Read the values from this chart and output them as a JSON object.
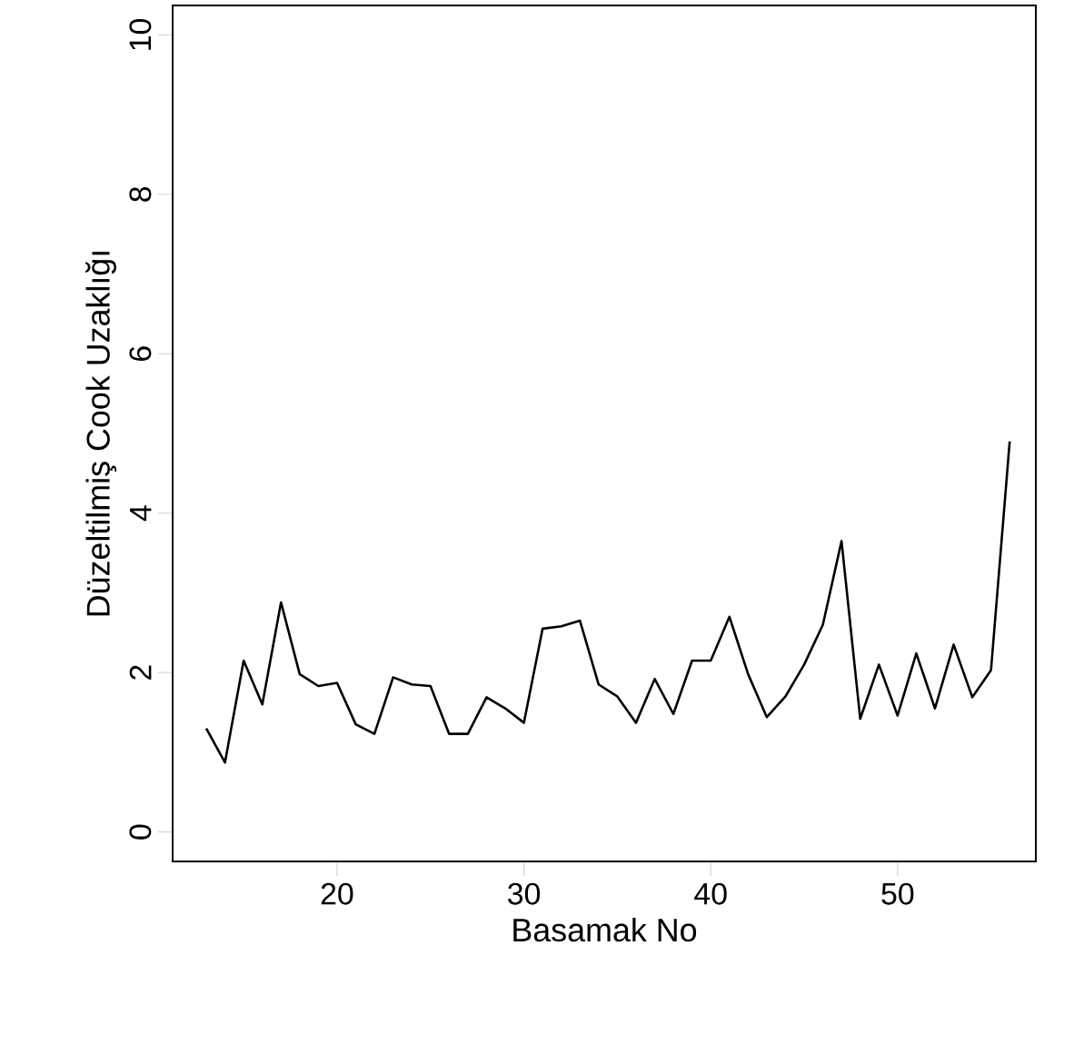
{
  "chart_data": {
    "type": "line",
    "xlabel": "Basamak No",
    "ylabel": "Düzeltilmiş Cook Uzaklığı",
    "x": [
      13,
      14,
      15,
      16,
      17,
      18,
      19,
      20,
      21,
      22,
      23,
      24,
      25,
      26,
      27,
      28,
      29,
      30,
      31,
      32,
      33,
      34,
      35,
      36,
      37,
      38,
      39,
      40,
      41,
      42,
      43,
      44,
      45,
      46,
      47,
      48,
      49,
      50,
      51,
      52,
      53,
      54,
      55,
      56
    ],
    "values": [
      1.3,
      0.87,
      2.15,
      1.6,
      2.88,
      1.98,
      1.83,
      1.87,
      1.35,
      1.23,
      1.94,
      1.85,
      1.83,
      1.23,
      1.23,
      1.69,
      1.55,
      1.37,
      2.55,
      2.58,
      2.65,
      1.85,
      1.7,
      1.37,
      1.92,
      1.48,
      2.15,
      2.15,
      2.7,
      1.98,
      1.44,
      1.7,
      2.1,
      2.6,
      3.65,
      1.42,
      2.1,
      1.46,
      2.24,
      1.55,
      2.35,
      1.69,
      2.03,
      4.9
    ],
    "color": "#000000",
    "xlim": [
      11.2,
      57.4
    ],
    "ylim": [
      -0.37,
      10.37
    ],
    "xticks": [
      20,
      30,
      40,
      50
    ],
    "yticks": [
      0,
      2,
      4,
      6,
      8,
      10
    ],
    "grid": false,
    "marker": "none",
    "line_style": "solid"
  }
}
